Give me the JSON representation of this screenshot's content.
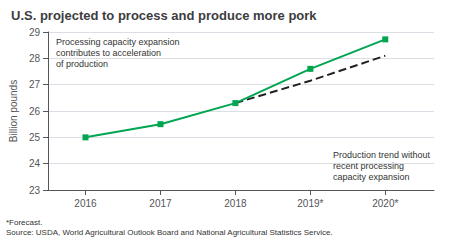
{
  "chart_data": {
    "type": "line",
    "title": "U.S. projected to process and produce more pork",
    "ylabel": "Billion pounds",
    "x": [
      2016,
      2017,
      2018,
      2019,
      2020
    ],
    "series": [
      {
        "color": "#00a550",
        "marker": "square",
        "line_style": "solid",
        "values": [
          25.0,
          25.5,
          26.3,
          27.6,
          28.72
        ]
      },
      {
        "color": "#222222",
        "marker": "none",
        "line_style": "dashed",
        "values": [
          null,
          null,
          26.3,
          27.15,
          28.1
        ]
      }
    ],
    "xlim": [
      2015.5,
      2020.65
    ],
    "xticks": [
      2016,
      2017,
      2018,
      {
        "value": 2019,
        "label": "2019*"
      },
      {
        "value": 2020,
        "label": "2020*"
      }
    ],
    "ylim": [
      23,
      29
    ],
    "yticks": [
      23,
      24,
      25,
      26,
      27,
      28,
      29
    ],
    "grid": true,
    "annotations": [
      "Processing capacity expansion\ncontributes to acceleration\nof production",
      "Production trend without\nrecent processing\ncapacity expansion"
    ],
    "footnote": "*Forecast.\nSource: USDA, World Agricultural Outlook Board and National Agricultural Statistics Service."
  }
}
